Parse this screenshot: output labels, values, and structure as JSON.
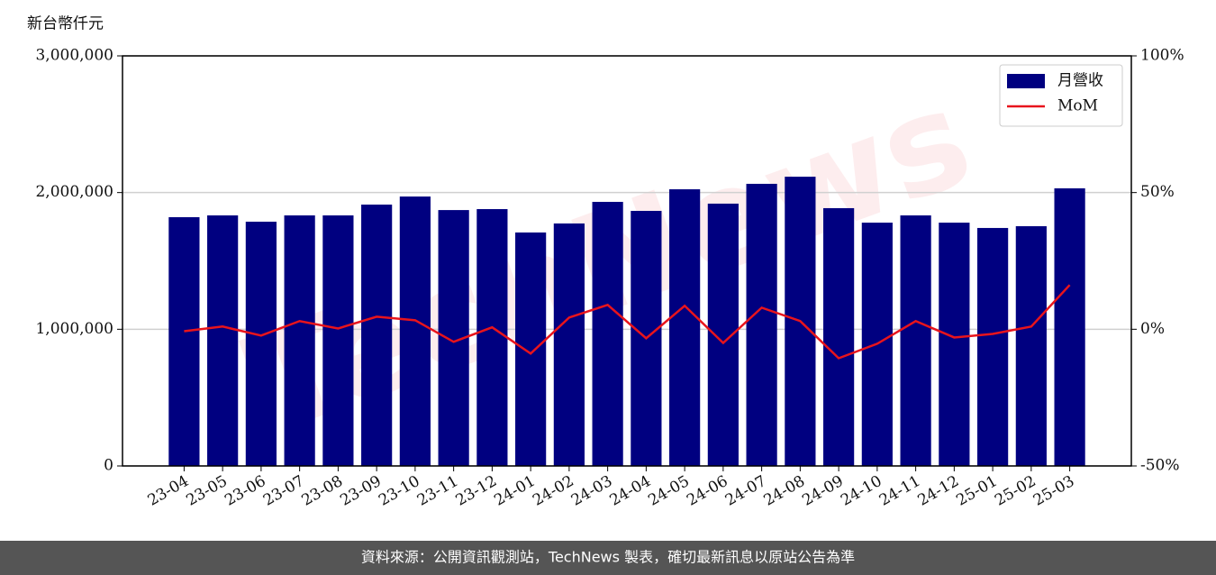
{
  "chart_data": {
    "type": "bar",
    "y_label": "新台幣仟元",
    "watermark": "TechNews",
    "source": "資料來源：公開資訊觀測站，TechNews 製表，確切最新訊息以原站公告為準",
    "categories": [
      "23-04",
      "23-05",
      "23-06",
      "23-07",
      "23-08",
      "23-09",
      "23-10",
      "23-11",
      "23-12",
      "24-01",
      "24-02",
      "24-03",
      "24-04",
      "24-05",
      "24-06",
      "24-07",
      "24-08",
      "24-09",
      "24-10",
      "24-11",
      "24-12",
      "25-01",
      "25-02",
      "25-03"
    ],
    "series": [
      {
        "name": "月營收",
        "type": "bar",
        "color": "#000080",
        "axis": "y",
        "values": [
          1820000,
          1833000,
          1787000,
          1833000,
          1833000,
          1912000,
          1971000,
          1872000,
          1879000,
          1708000,
          1774000,
          1932000,
          1866000,
          2024000,
          1919000,
          2064000,
          2116000,
          1886000,
          1780000,
          1833000,
          1780000,
          1741000,
          1754000,
          2031000
        ]
      },
      {
        "name": "MoM",
        "type": "line",
        "color": "#e8141c",
        "axis": "y2",
        "values": [
          -0.7,
          1.0,
          -2.3,
          3.0,
          0.3,
          4.6,
          3.3,
          -4.6,
          0.7,
          -8.9,
          4.3,
          8.9,
          -3.3,
          8.6,
          -5.0,
          7.9,
          3.0,
          -10.6,
          -5.3,
          3.0,
          -3.0,
          -1.7,
          1.0,
          16.2
        ]
      }
    ],
    "ylim": [
      0,
      3000000
    ],
    "yticks": [
      0,
      {
        "value": 1000000,
        "label": "1,000,000"
      },
      {
        "value": 2000000,
        "label": "2,000,000"
      },
      {
        "value": 3000000,
        "label": "3,000,000"
      }
    ],
    "y2lim": [
      -50,
      100
    ],
    "y2ticks": [
      {
        "value": -50,
        "label": "-50%"
      },
      {
        "value": 0,
        "label": "0%"
      },
      {
        "value": 50,
        "label": "50%"
      },
      {
        "value": 100,
        "label": "100%"
      }
    ],
    "grid": true,
    "legend": "upper right"
  }
}
